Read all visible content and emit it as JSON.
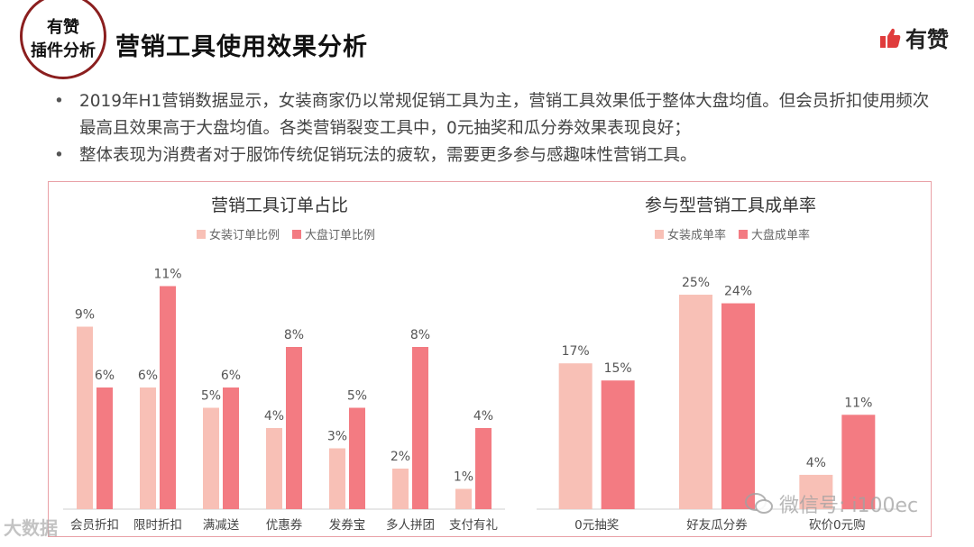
{
  "header": {
    "badge_line1": "有赞",
    "badge_line2": "插件分析",
    "title": "营销工具使用效果分析",
    "brand": "有赞"
  },
  "bullets": [
    "2019年H1营销数据显示，女装商家仍以常规促销工具为主，营销工具效果低于整体大盘均值。但会员折扣使用频次最高且效果高于大盘均值。各类营销裂变工具中，0元抽奖和瓜分券效果表现良好；",
    "整体表现为消费者对于服饰传统促销玩法的疲软，需要更多参与感趣味性营销工具。"
  ],
  "colors": {
    "series1": "#f8c0b6",
    "series2": "#f37b82",
    "frame": "#e9a0a6",
    "accent": "#e03c3c"
  },
  "chart_data": [
    {
      "type": "bar",
      "title": "营销工具订单占比",
      "categories": [
        "会员折扣",
        "限时折扣",
        "满减送",
        "优惠券",
        "发券宝",
        "多人拼团",
        "支付有礼"
      ],
      "series": [
        {
          "name": "女装订单比例",
          "values": [
            9,
            6,
            5,
            4,
            3,
            2,
            1
          ]
        },
        {
          "name": "大盘订单比例",
          "values": [
            6,
            11,
            6,
            8,
            5,
            8,
            4
          ]
        }
      ],
      "unit": "%",
      "ylim": [
        0,
        12
      ]
    },
    {
      "type": "bar",
      "title": "参与型营销工具成单率",
      "categories": [
        "0元抽奖",
        "好友瓜分券",
        "砍价0元购"
      ],
      "series": [
        {
          "name": "女装成单率",
          "values": [
            17,
            25,
            4
          ]
        },
        {
          "name": "大盘成单率",
          "values": [
            15,
            24,
            11
          ]
        }
      ],
      "unit": "%",
      "ylim": [
        0,
        27
      ]
    }
  ],
  "watermarks": {
    "wechat": "微信号: i100ec",
    "left": "大数据"
  }
}
